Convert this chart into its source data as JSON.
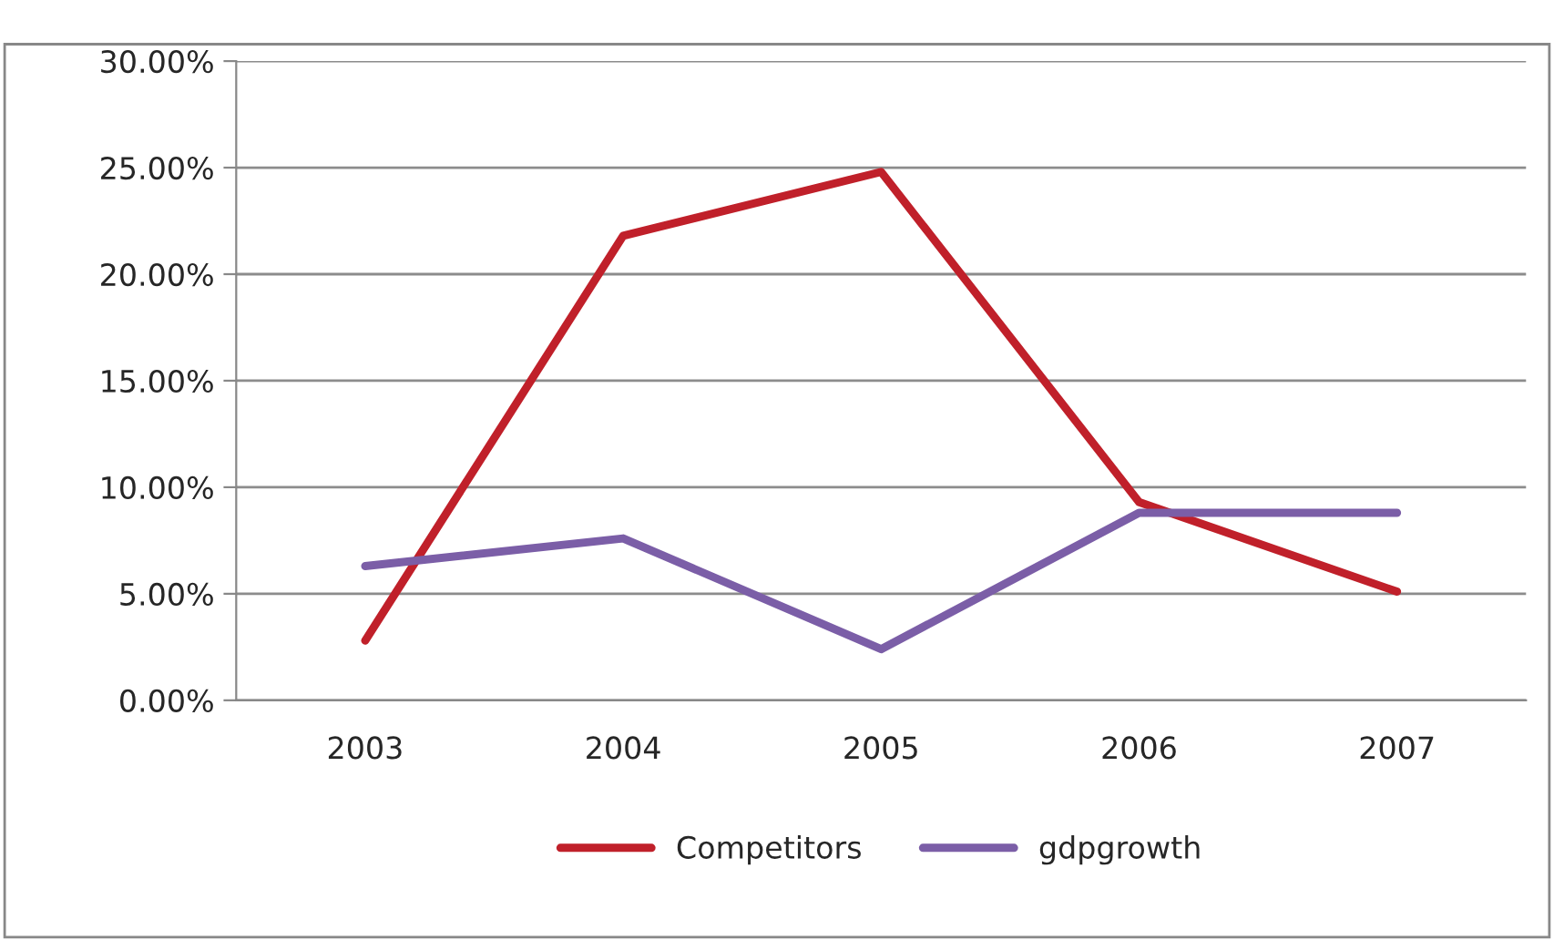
{
  "chart_data": {
    "type": "line",
    "categories": [
      "2003",
      "2004",
      "2005",
      "2006",
      "2007"
    ],
    "series": [
      {
        "name": "Competitors",
        "color": "#c0202a",
        "values": [
          2.8,
          21.8,
          24.8,
          9.3,
          5.1
        ]
      },
      {
        "name": "gdpgrowth",
        "color": "#7b5ea7",
        "values": [
          6.3,
          7.6,
          2.4,
          8.8,
          8.8
        ]
      }
    ],
    "ylim": [
      0,
      30
    ],
    "yticks": [
      {
        "value": 0,
        "label": "0.00%"
      },
      {
        "value": 5,
        "label": "5.00%"
      },
      {
        "value": 10,
        "label": "10.00%"
      },
      {
        "value": 15,
        "label": "15.00%"
      },
      {
        "value": 20,
        "label": "20.00%"
      },
      {
        "value": 25,
        "label": "25.00%"
      },
      {
        "value": 30,
        "label": "30.00%"
      }
    ],
    "grid": "y",
    "legend": "bottom",
    "marker": "none",
    "line_style": "solid"
  }
}
